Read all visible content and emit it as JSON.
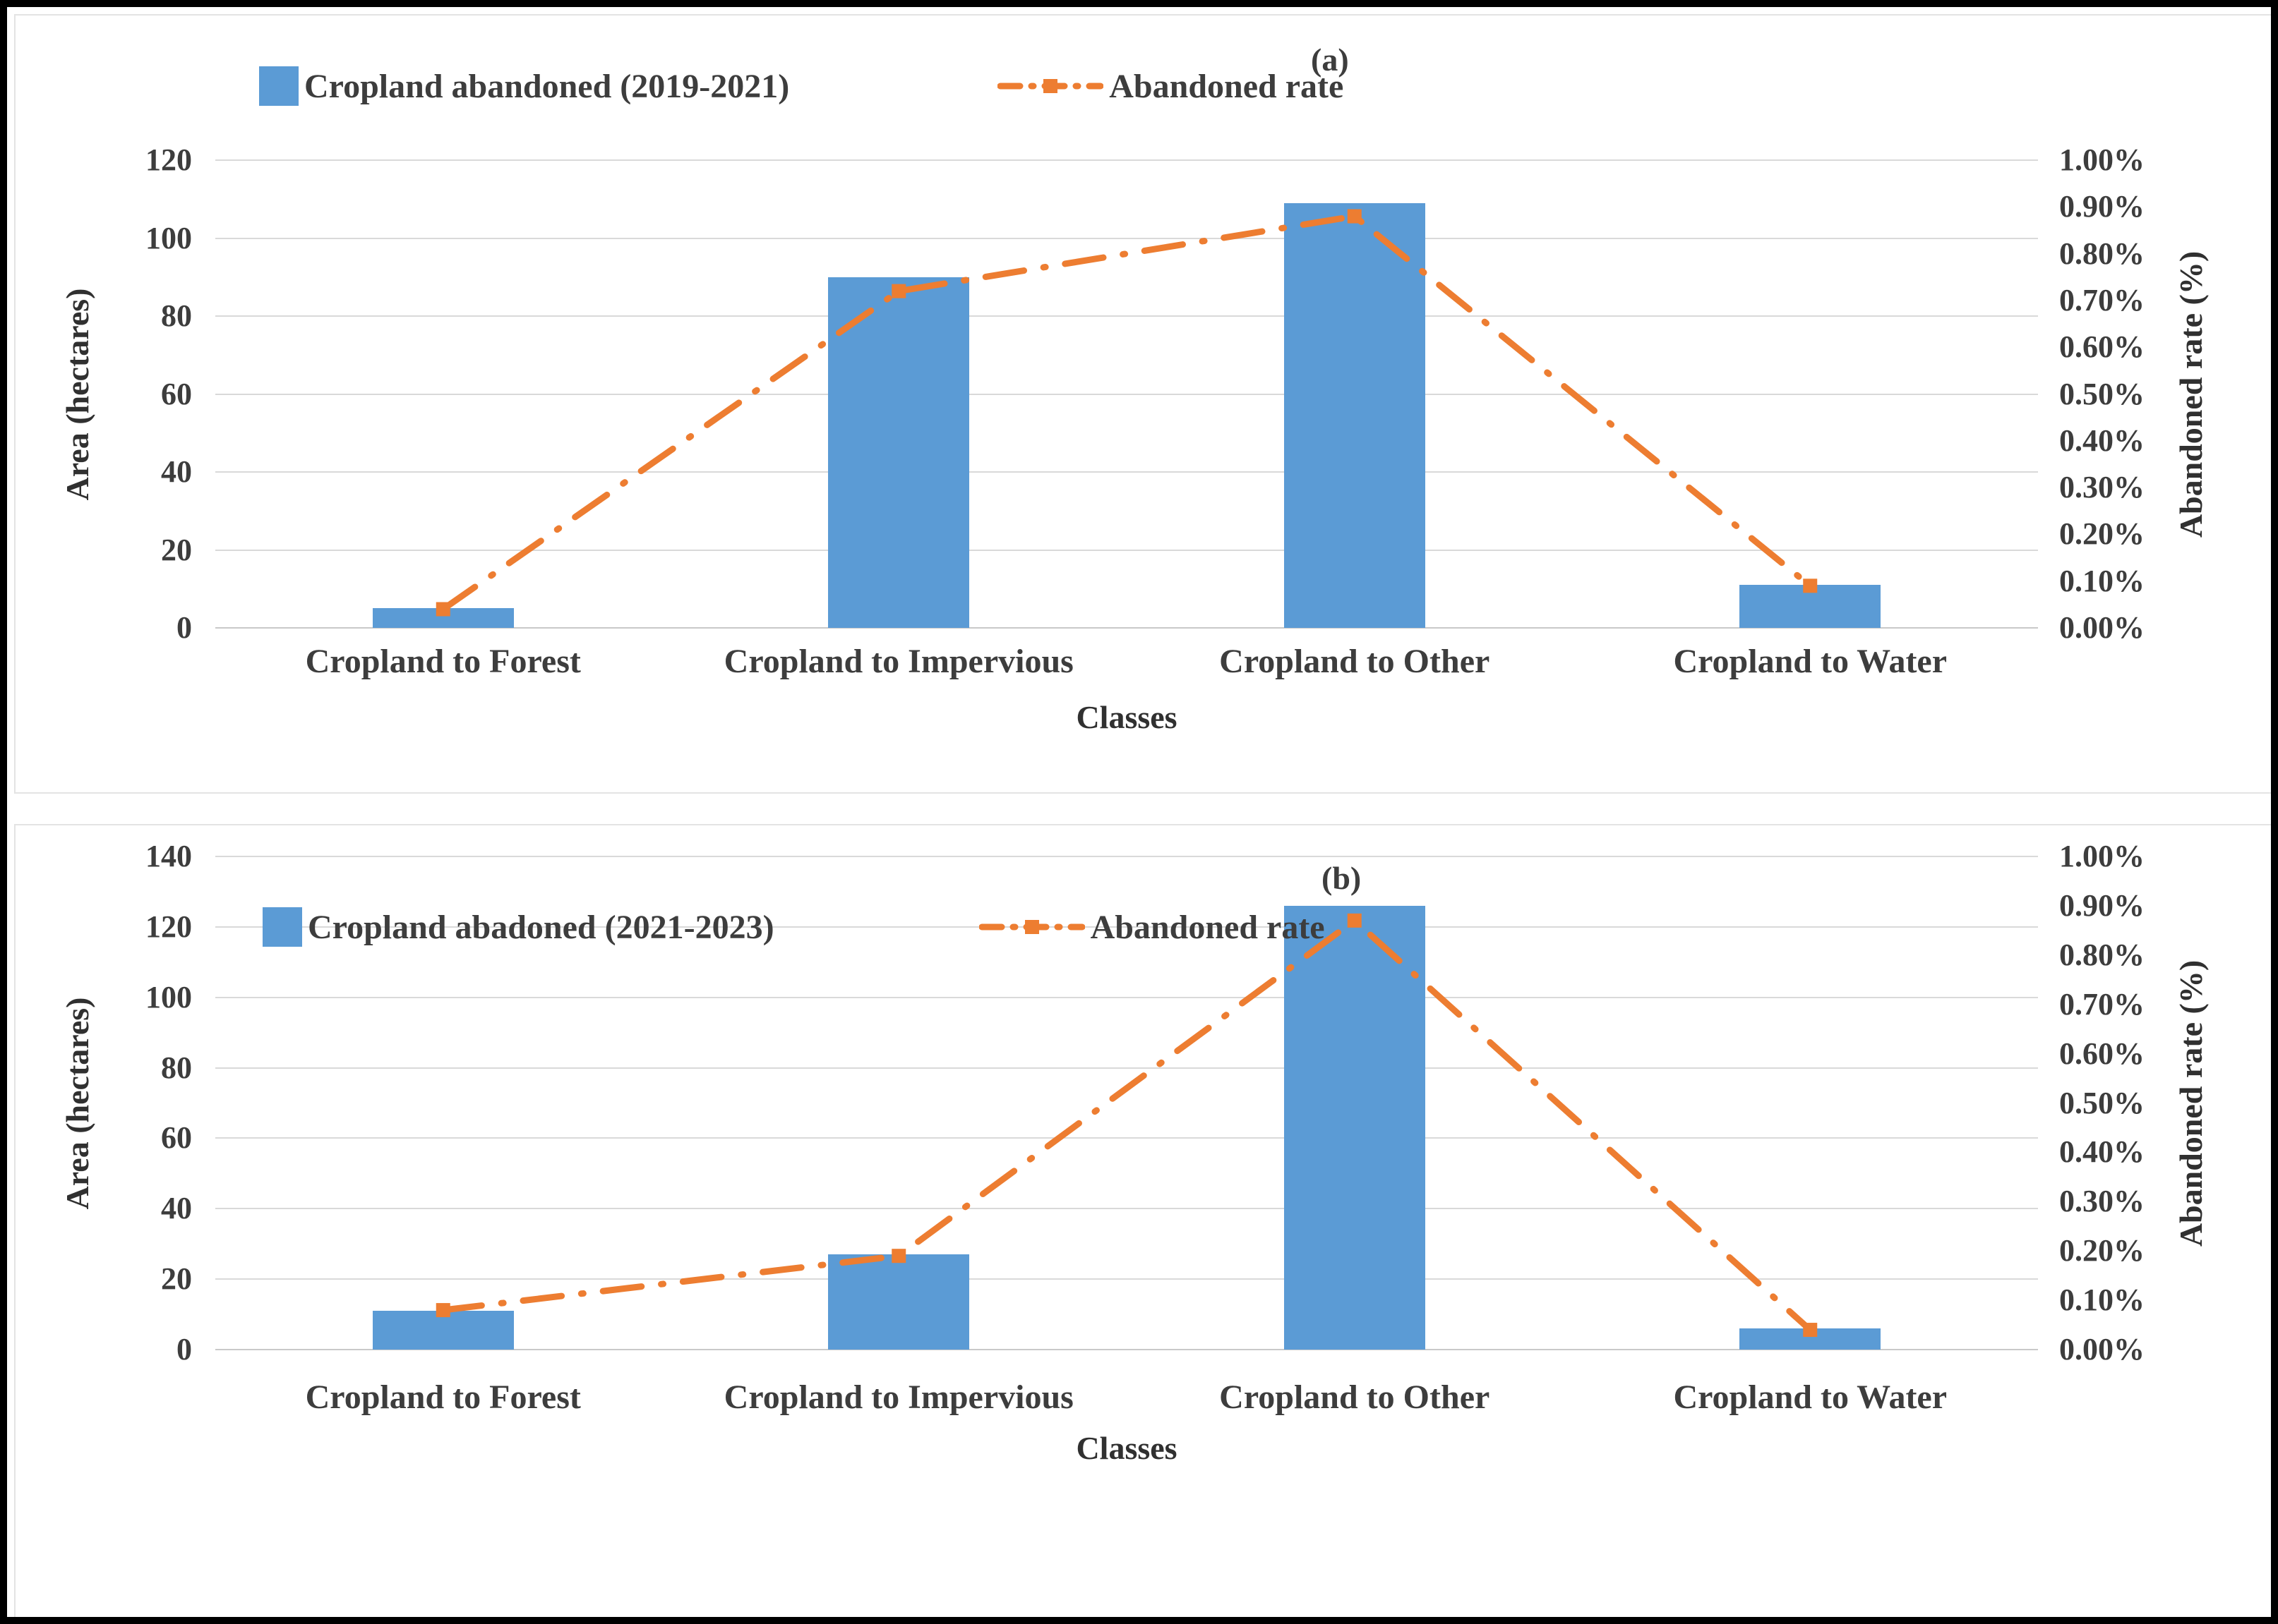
{
  "figure": {
    "background": "#ffffff",
    "frame_color": "#000000",
    "grid_color": "#d9d9d9",
    "text_color": "#3d3d3d",
    "bar_color": "#5b9bd5",
    "line_color": "#ed7d31"
  },
  "chart_data": [
    {
      "type": "bar",
      "subtype": "bar-line-combo",
      "panel_label": "(a)",
      "categories": [
        "Cropland to Forest",
        "Cropland to Impervious",
        "Cropland to Other",
        "Cropland to Water"
      ],
      "series": [
        {
          "name": "Cropland abandoned (2019-2021)",
          "axis": "left",
          "kind": "bar",
          "color": "#5b9bd5",
          "values": [
            5,
            90,
            109,
            11
          ]
        },
        {
          "name": "Abandoned rate",
          "axis": "right",
          "kind": "line",
          "style": "dash-dot",
          "marker": "square",
          "color": "#ed7d31",
          "values_percent": [
            0.04,
            0.72,
            0.88,
            0.09
          ]
        }
      ],
      "xlabel": "Classes",
      "ylabel": "Area (hectares)",
      "y2label": "Abandoned rate  (%)",
      "ylim": [
        0,
        120
      ],
      "y_ticks": [
        "120",
        "100",
        "80",
        "60",
        "40",
        "20",
        "0"
      ],
      "y2lim": [
        0,
        1
      ],
      "y2_ticks": [
        "1.00%",
        "0.90%",
        "0.80%",
        "0.70%",
        "0.60%",
        "0.50%",
        "0.40%",
        "0.30%",
        "0.20%",
        "0.10%",
        "0.00%"
      ],
      "grid": true,
      "legend_position": "top"
    },
    {
      "type": "bar",
      "subtype": "bar-line-combo",
      "panel_label": "(b)",
      "categories": [
        "Cropland to Forest",
        "Cropland to Impervious",
        "Cropland to Other",
        "Cropland to Water"
      ],
      "series": [
        {
          "name": "Cropland abadoned (2021-2023)",
          "axis": "left",
          "kind": "bar",
          "color": "#5b9bd5",
          "values": [
            11,
            27,
            126,
            6
          ]
        },
        {
          "name": "Abandoned rate",
          "axis": "right",
          "kind": "line",
          "style": "dash-dot",
          "marker": "square",
          "color": "#ed7d31",
          "values_percent": [
            0.08,
            0.19,
            0.87,
            0.04
          ]
        }
      ],
      "xlabel": "Classes",
      "ylabel": "Area (hectares)",
      "y2label": "Abandoned rate  (%)",
      "ylim": [
        0,
        140
      ],
      "y_ticks": [
        "140",
        "120",
        "100",
        "80",
        "60",
        "40",
        "20",
        "0"
      ],
      "y2lim": [
        0,
        1
      ],
      "y2_ticks": [
        "1.00%",
        "0.90%",
        "0.80%",
        "0.70%",
        "0.60%",
        "0.50%",
        "0.40%",
        "0.30%",
        "0.20%",
        "0.10%",
        "0.00%"
      ],
      "grid": true,
      "legend_position": "inside-top"
    }
  ]
}
